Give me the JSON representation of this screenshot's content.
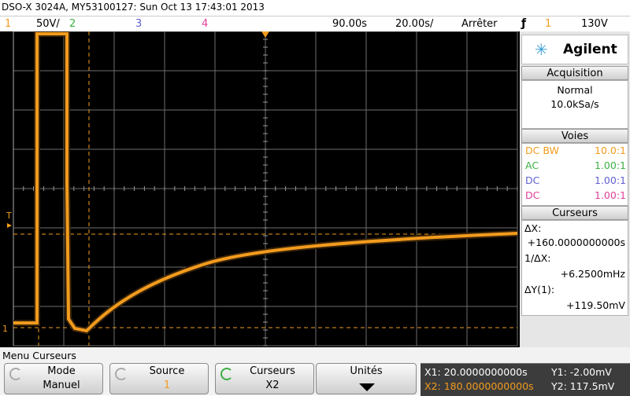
{
  "header": {
    "title": "DSO-X 3024A, MY53100127: Sun Oct 13 17:43:01 2013"
  },
  "status_bar": {
    "ch1": "1",
    "ch1_scale": "50V/",
    "ch2": "2",
    "ch3": "3",
    "ch4": "4",
    "time_position": "90.00s",
    "time_scale": "20.00s/",
    "run_state": "Arrêter",
    "trigger_source": "1",
    "trigger_level": "130V"
  },
  "plot": {
    "trigger_marker": "T",
    "ground_marker": "1"
  },
  "side_panel": {
    "brand": "Agilent",
    "acquisition": {
      "title": "Acquisition",
      "mode": "Normal",
      "rate": "10.0kSa/s"
    },
    "channels": {
      "title": "Voies",
      "rows": [
        [
          "DC BW",
          "10.0:1"
        ],
        [
          "AC",
          "1.00:1"
        ],
        [
          "DC",
          "1.00:1"
        ],
        [
          "DC",
          "1.00:1"
        ]
      ]
    },
    "cursors": {
      "title": "Curseurs",
      "dx_label": "ΔX:",
      "dx": "+160.0000000000s",
      "inv_dx_label": "1/ΔX:",
      "inv_dx": "+6.2500mHz",
      "dy_label": "ΔY(1):",
      "dy": "+119.50mV"
    }
  },
  "menu": {
    "title": "Menu Curseurs",
    "buttons": [
      {
        "label": "Mode",
        "value": "Manuel"
      },
      {
        "label": "Source",
        "value": "1"
      },
      {
        "label": "Curseurs",
        "value": "X2"
      },
      {
        "label": "Unités"
      }
    ],
    "readout": {
      "x1": "X1: 20.0000000000s",
      "x2": "X2: 180.0000000000s",
      "y1": "Y1: -2.00mV",
      "y2": "Y2: 117.5mV"
    }
  }
}
